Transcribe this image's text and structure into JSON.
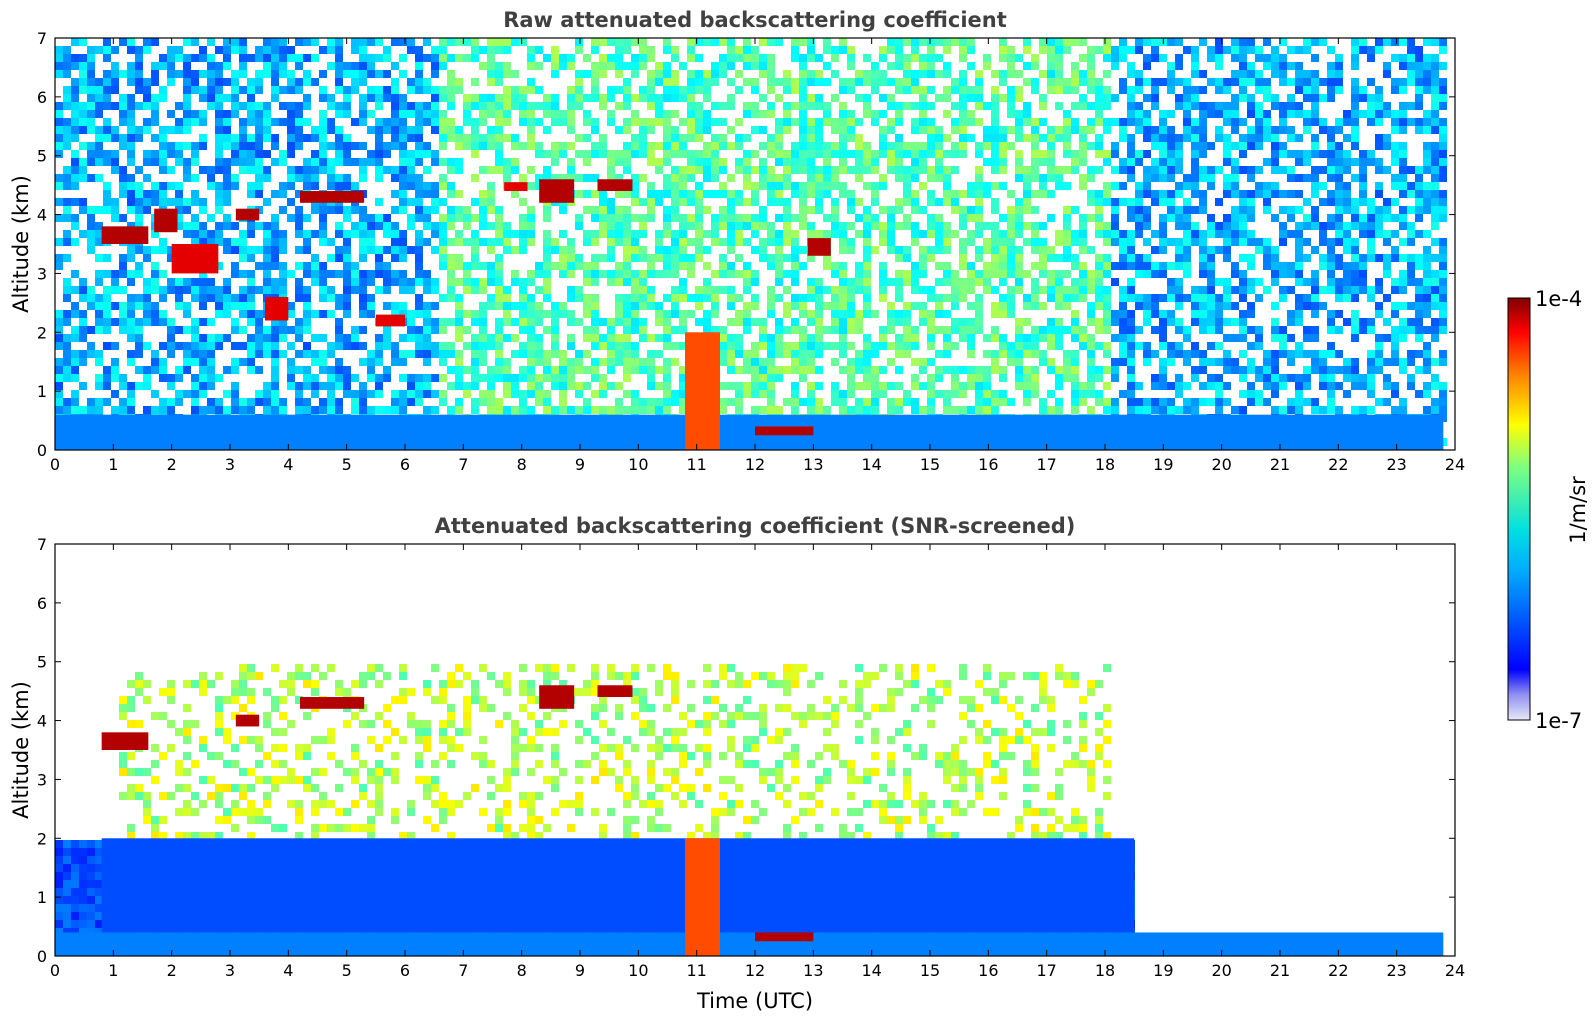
{
  "chart_data": [
    {
      "type": "heatmap",
      "title": "Raw attenuated backscattering coefficient",
      "xlabel": "",
      "ylabel": "Altitude (km)",
      "xlim": [
        0,
        24
      ],
      "ylim": [
        0,
        7
      ],
      "xticks": [
        0,
        1,
        2,
        3,
        4,
        5,
        6,
        7,
        8,
        9,
        10,
        11,
        12,
        13,
        14,
        15,
        16,
        17,
        18,
        19,
        20,
        21,
        22,
        23,
        24
      ],
      "yticks": [
        0,
        1,
        2,
        3,
        4,
        5,
        6,
        7
      ],
      "data_end_time": 23.8,
      "features": [
        {
          "label": "boundary layer",
          "x": [
            0,
            23.8
          ],
          "y": [
            0,
            0.6
          ],
          "level": 0.25
        },
        {
          "label": "cloud",
          "x": [
            0.8,
            1.6
          ],
          "y": [
            3.5,
            3.8
          ],
          "level": 0.95
        },
        {
          "label": "cloud",
          "x": [
            1.7,
            2.1
          ],
          "y": [
            3.7,
            4.1
          ],
          "level": 0.95
        },
        {
          "label": "cloud",
          "x": [
            2.0,
            2.8
          ],
          "y": [
            3.0,
            3.5
          ],
          "level": 0.9
        },
        {
          "label": "cloud",
          "x": [
            3.1,
            3.5
          ],
          "y": [
            3.9,
            4.1
          ],
          "level": 0.95
        },
        {
          "label": "cloud",
          "x": [
            3.6,
            4.0
          ],
          "y": [
            2.2,
            2.6
          ],
          "level": 0.9
        },
        {
          "label": "cloud",
          "x": [
            4.2,
            5.3
          ],
          "y": [
            4.2,
            4.4
          ],
          "level": 0.95
        },
        {
          "label": "cloud",
          "x": [
            5.5,
            6.0
          ],
          "y": [
            2.1,
            2.3
          ],
          "level": 0.9
        },
        {
          "label": "cloud",
          "x": [
            7.7,
            8.1
          ],
          "y": [
            4.4,
            4.55
          ],
          "level": 0.9
        },
        {
          "label": "cloud",
          "x": [
            8.3,
            8.9
          ],
          "y": [
            4.2,
            4.6
          ],
          "level": 0.95
        },
        {
          "label": "cloud",
          "x": [
            9.3,
            9.9
          ],
          "y": [
            4.4,
            4.6
          ],
          "level": 0.95
        },
        {
          "label": "cloud",
          "x": [
            12.9,
            13.3
          ],
          "y": [
            3.3,
            3.6
          ],
          "level": 0.95
        },
        {
          "label": "precipitation",
          "x": [
            10.8,
            11.4
          ],
          "y": [
            0,
            2.0
          ],
          "level": 0.8
        },
        {
          "label": "low cloud",
          "x": [
            12.0,
            13.0
          ],
          "y": [
            0.25,
            0.4
          ],
          "level": 0.95
        }
      ]
    },
    {
      "type": "heatmap",
      "title": "Attenuated backscattering coefficient (SNR-screened)",
      "xlabel": "Time (UTC)",
      "ylabel": "Altitude (km)",
      "xlim": [
        0,
        24
      ],
      "ylim": [
        0,
        7
      ],
      "xticks": [
        0,
        1,
        2,
        3,
        4,
        5,
        6,
        7,
        8,
        9,
        10,
        11,
        12,
        13,
        14,
        15,
        16,
        17,
        18,
        19,
        20,
        21,
        22,
        23,
        24
      ],
      "yticks": [
        0,
        1,
        2,
        3,
        4,
        5,
        6,
        7
      ],
      "data_end_time": 23.8,
      "features": [
        {
          "label": "boundary layer",
          "x": [
            0,
            23.8
          ],
          "y": [
            0,
            0.4
          ],
          "level": 0.25
        },
        {
          "label": "aerosol layer",
          "x": [
            0.8,
            18.5
          ],
          "y": [
            0.4,
            2.0
          ],
          "level": 0.2
        },
        {
          "label": "cloud",
          "x": [
            0.8,
            1.6
          ],
          "y": [
            3.5,
            3.8
          ],
          "level": 0.95
        },
        {
          "label": "cloud",
          "x": [
            3.1,
            3.5
          ],
          "y": [
            3.9,
            4.1
          ],
          "level": 0.95
        },
        {
          "label": "cloud",
          "x": [
            4.2,
            5.3
          ],
          "y": [
            4.2,
            4.4
          ],
          "level": 0.95
        },
        {
          "label": "cloud",
          "x": [
            8.3,
            8.9
          ],
          "y": [
            4.2,
            4.6
          ],
          "level": 0.95
        },
        {
          "label": "cloud",
          "x": [
            9.3,
            9.9
          ],
          "y": [
            4.4,
            4.6
          ],
          "level": 0.95
        },
        {
          "label": "precipitation",
          "x": [
            10.8,
            11.4
          ],
          "y": [
            0,
            2.0
          ],
          "level": 0.8
        },
        {
          "label": "low cloud",
          "x": [
            12.0,
            13.0
          ],
          "y": [
            0.25,
            0.4
          ],
          "level": 0.95
        }
      ]
    }
  ],
  "colorbar": {
    "label": "1/m/sr",
    "min_label": "1e-7",
    "max_label": "1e-4",
    "scale": "log",
    "colormap": "jet"
  }
}
